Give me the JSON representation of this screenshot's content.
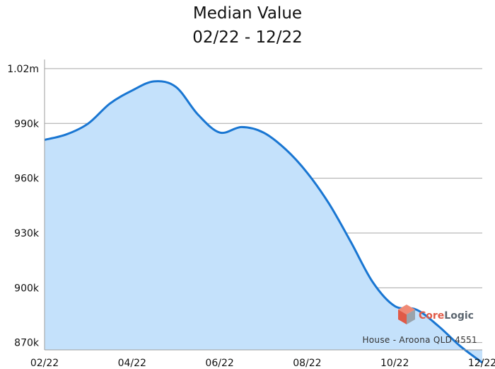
{
  "chart_data": {
    "type": "area",
    "title": "Median Value",
    "subtitle": "02/22 - 12/22",
    "xlabel": "",
    "ylabel": "",
    "x_ticks": [
      "02/22",
      "04/22",
      "06/22",
      "08/22",
      "10/22",
      "12/22"
    ],
    "y_ticks": [
      "870k",
      "900k",
      "930k",
      "960k",
      "990k",
      "1.02m"
    ],
    "ylim": [
      866000,
      1025000
    ],
    "grid": "horizontal",
    "series": [
      {
        "x": [
          0,
          0.5,
          1,
          1.5,
          2,
          2.5,
          3,
          3.5,
          4,
          4.5,
          5,
          5.5,
          6,
          6.5,
          7,
          7.5,
          8,
          8.5,
          9,
          9.5,
          10
        ],
        "values": [
          981000,
          984000,
          990000,
          1001000,
          1008000,
          1013000,
          1010000,
          995000,
          985000,
          988000,
          985000,
          976000,
          963000,
          946000,
          925000,
          903000,
          890000,
          888000,
          879000,
          868000,
          859000
        ]
      }
    ],
    "colors": {
      "line": "#1976d2",
      "fill": "#c4e1fb",
      "grid": "#a7a7a7",
      "axis": "#9e9e9e"
    },
    "annotations": {
      "caption": "House - Aroona QLD 4551"
    }
  },
  "logo": {
    "text_core": "Core",
    "text_logic": "Logic",
    "color_core": "#e05a47",
    "color_logic": "#5c6670",
    "icon": "corelogic-cube-icon"
  }
}
